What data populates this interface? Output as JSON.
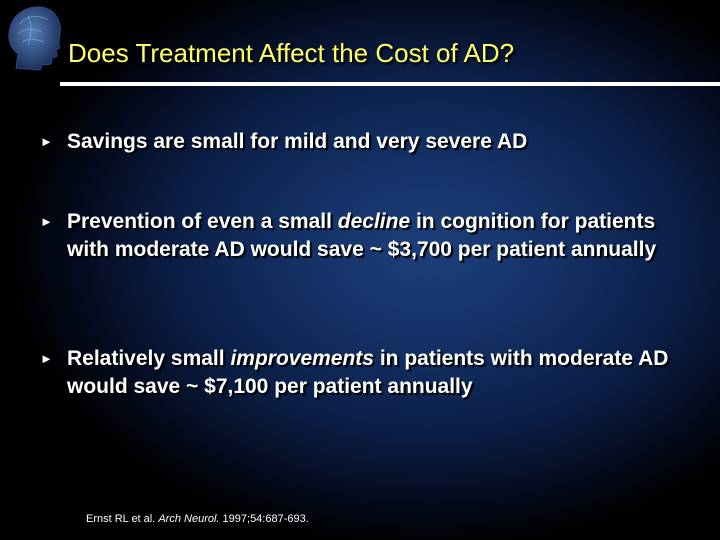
{
  "slide": {
    "title": "Does Treatment Affect the Cost of AD?",
    "bullets": [
      {
        "before": "Savings are small for mild and very severe AD",
        "emph": "",
        "after": ""
      },
      {
        "before": "Prevention of even a small ",
        "emph": "decline",
        "after": " in cognition for patients with moderate AD would save ~ $3,700 per patient annually"
      },
      {
        "before": "Relatively small ",
        "emph": "improvements",
        "after": " in patients with moderate AD would save ~ $7,100 per patient annually"
      }
    ],
    "reference": {
      "authors": "Ernst RL et al. ",
      "journal": "Arch Neurol.",
      "citation": " 1997;54:687-693."
    },
    "bullet_glyph": "►",
    "colors": {
      "title": "#ffff66",
      "text": "#ffffff",
      "background": "#143166"
    }
  }
}
